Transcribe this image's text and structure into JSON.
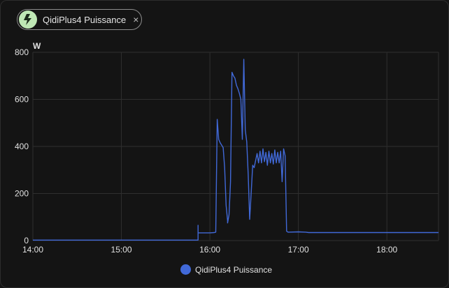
{
  "entity_chip": {
    "label": "QidiPlus4 Puissance",
    "icon": "flash-icon",
    "icon_bg": "#bfe8b5",
    "close_symbol": "×"
  },
  "legend": {
    "label": "QidiPlus4 Puissance",
    "color": "#4169d8"
  },
  "chart_data": {
    "type": "line",
    "unit_label": "W",
    "ylim": [
      0,
      800
    ],
    "y_ticks": [
      "0",
      "200",
      "400",
      "600",
      "800"
    ],
    "xlim": [
      "14:00",
      "18:35"
    ],
    "x_ticks": [
      "14:00",
      "15:00",
      "16:00",
      "17:00",
      "18:00"
    ],
    "grid": true,
    "legend_position": "bottom",
    "series": [
      {
        "name": "QidiPlus4 Puissance",
        "color": "#4169d8",
        "points": [
          [
            "14:00",
            2
          ],
          [
            "15:00",
            2
          ],
          [
            "15:52",
            2
          ],
          [
            "15:52",
            65
          ],
          [
            "15:52",
            33
          ],
          [
            "16:00",
            33
          ],
          [
            "16:03",
            34
          ],
          [
            "16:04",
            36
          ],
          [
            "16:05",
            515
          ],
          [
            "16:06",
            430
          ],
          [
            "16:07",
            415
          ],
          [
            "16:08",
            405
          ],
          [
            "16:09",
            395
          ],
          [
            "16:10",
            310
          ],
          [
            "16:11",
            150
          ],
          [
            "16:12",
            85
          ],
          [
            "16:12",
            75
          ],
          [
            "16:13",
            110
          ],
          [
            "16:14",
            250
          ],
          [
            "16:15",
            715
          ],
          [
            "16:16",
            700
          ],
          [
            "16:17",
            690
          ],
          [
            "16:18",
            660
          ],
          [
            "16:19",
            645
          ],
          [
            "16:20",
            625
          ],
          [
            "16:21",
            600
          ],
          [
            "16:22",
            430
          ],
          [
            "16:23",
            770
          ],
          [
            "16:24",
            470
          ],
          [
            "16:25",
            420
          ],
          [
            "16:26",
            280
          ],
          [
            "16:27",
            90
          ],
          [
            "16:28",
            200
          ],
          [
            "16:29",
            320
          ],
          [
            "16:30",
            310
          ],
          [
            "16:31",
            340
          ],
          [
            "16:32",
            370
          ],
          [
            "16:33",
            330
          ],
          [
            "16:34",
            380
          ],
          [
            "16:35",
            330
          ],
          [
            "16:36",
            390
          ],
          [
            "16:37",
            335
          ],
          [
            "16:38",
            375
          ],
          [
            "16:39",
            320
          ],
          [
            "16:40",
            380
          ],
          [
            "16:41",
            330
          ],
          [
            "16:42",
            370
          ],
          [
            "16:43",
            325
          ],
          [
            "16:44",
            385
          ],
          [
            "16:45",
            330
          ],
          [
            "16:46",
            375
          ],
          [
            "16:47",
            330
          ],
          [
            "16:48",
            380
          ],
          [
            "16:49",
            250
          ],
          [
            "16:50",
            390
          ],
          [
            "16:51",
            360
          ],
          [
            "16:52",
            40
          ],
          [
            "16:53",
            36
          ],
          [
            "17:00",
            37
          ],
          [
            "17:05",
            36
          ],
          [
            "17:07",
            34
          ],
          [
            "18:00",
            34
          ],
          [
            "18:35",
            34
          ]
        ]
      }
    ]
  }
}
